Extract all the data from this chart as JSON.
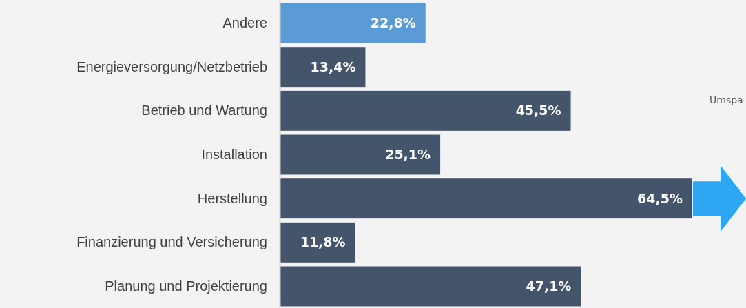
{
  "chart_data": {
    "type": "bar",
    "orientation": "horizontal",
    "categories": [
      "Andere",
      "Energieversorgung/Netzbetrieb",
      "Betrieb und Wartung",
      "Installation",
      "Herstellung",
      "Finanzierung und Versicherung",
      "Planung und Projektierung"
    ],
    "values": [
      22.8,
      13.4,
      45.5,
      25.1,
      64.5,
      11.8,
      47.1
    ],
    "colors": [
      "#5b9bd5",
      "#44546a",
      "#44546a",
      "#44546a",
      "#44546a",
      "#44546a",
      "#44546a"
    ],
    "value_labels": [
      "22,8%",
      "13,4%",
      "45,5%",
      "25,1%",
      "64,5%",
      "11,8%",
      "47,1%"
    ],
    "annotations": [
      "Umspa"
    ]
  }
}
